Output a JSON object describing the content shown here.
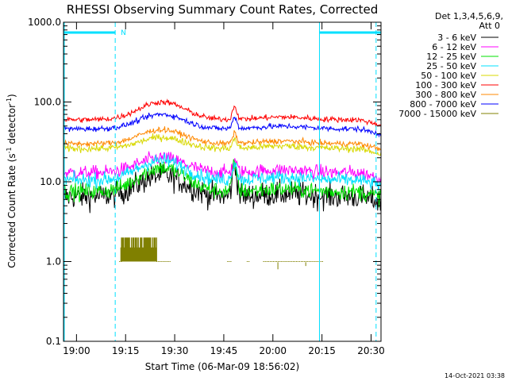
{
  "chart_data": {
    "type": "line",
    "title": "RHESSI Observing Summary Count Rates, Corrected",
    "xlabel": "Start Time (06-Mar-09 18:56:02)",
    "ylabel_main": "Corrected Count Rate (s",
    "ylabel_sup1": "-1",
    "ylabel_mid": " detector",
    "ylabel_sup2": "-1",
    "ylabel_end": ")",
    "yscale": "log",
    "ylim": [
      0.1,
      1000
    ],
    "xlim_minutes": [
      0,
      97
    ],
    "x_ticks": [
      {
        "label": "19:00",
        "min": 3.97
      },
      {
        "label": "19:15",
        "min": 18.97
      },
      {
        "label": "19:30",
        "min": 33.97
      },
      {
        "label": "19:45",
        "min": 48.97
      },
      {
        "label": "20:00",
        "min": 63.97
      },
      {
        "label": "20:15",
        "min": 78.97
      },
      {
        "label": "20:30",
        "min": 93.97
      }
    ],
    "y_ticks": [
      {
        "label": "0.1",
        "value": 0.1
      },
      {
        "label": "1.0",
        "value": 1
      },
      {
        "label": "10.0",
        "value": 10
      },
      {
        "label": "100.0",
        "value": 100
      },
      {
        "label": "1000.0",
        "value": 1000
      }
    ],
    "legend_header": [
      "Det 1,3,4,5,6,9,",
      "Att 0"
    ],
    "series": [
      {
        "name": "3 - 6 keV",
        "color": "#000000",
        "baseline": 6.5,
        "peak": 12,
        "noise": 0.18,
        "spike": 9
      },
      {
        "name": "6 - 12 keV",
        "color": "#ff00ff",
        "baseline": 13,
        "peak": 20,
        "noise": 0.1,
        "spike": 5
      },
      {
        "name": "12 - 25 keV",
        "color": "#00e000",
        "baseline": 7.5,
        "peak": 15,
        "noise": 0.12,
        "spike": 9
      },
      {
        "name": "25 - 50 keV",
        "color": "#00e0ff",
        "baseline": 10.5,
        "peak": 18.5,
        "noise": 0.1,
        "spike": 7
      },
      {
        "name": "50 - 100 keV",
        "color": "#d8d800",
        "baseline": 26,
        "peak": 36,
        "noise": 0.05,
        "spike": 8
      },
      {
        "name": "100 - 300 keV",
        "color": "#ff0000",
        "baseline": 60,
        "peak": 100,
        "noise": 0.04,
        "spike": 28
      },
      {
        "name": "300 - 800 keV",
        "color": "#ff8800",
        "baseline": 30,
        "peak": 45,
        "noise": 0.04,
        "spike": 10
      },
      {
        "name": "800 - 7000 keV",
        "color": "#0000ff",
        "baseline": 46,
        "peak": 70,
        "noise": 0.04,
        "spike": 18
      },
      {
        "name": "7000 - 15000 keV",
        "color": "#808000",
        "baseline": 1.0,
        "peak": 2.0,
        "noise": 0.0,
        "spike": 0
      }
    ],
    "flags": {
      "color": "#00e0ff",
      "label_n": "N",
      "bars": [
        [
          0,
          15.8
        ],
        [
          78.2,
          97
        ]
      ],
      "dashed_lines": [
        15.8,
        95.5
      ],
      "solid_line": 78.2
    }
  },
  "footer": {
    "timestamp": "14-Oct-2021 03:38"
  }
}
